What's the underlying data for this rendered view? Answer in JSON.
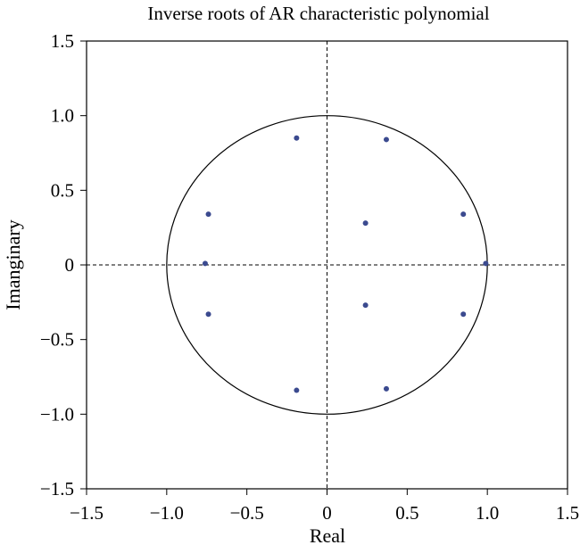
{
  "chart_data": {
    "type": "scatter",
    "title": "Inverse roots of AR characteristic polynomial",
    "xlabel": "Real",
    "ylabel": "Imanginary",
    "xlim": [
      -1.5,
      1.5
    ],
    "ylim": [
      -1.5,
      1.5
    ],
    "xticks": [
      -1.5,
      -1.0,
      -0.5,
      0,
      0.5,
      1.0,
      1.5
    ],
    "yticks": [
      -1.5,
      -1.0,
      -0.5,
      0,
      0.5,
      1.0,
      1.5
    ],
    "xtick_labels": [
      "−1.5",
      "−1.0",
      "−0.5",
      "0",
      "0.5",
      "1.0",
      "1.5"
    ],
    "ytick_labels": [
      "−1.5",
      "−1.0",
      "−0.5",
      "0",
      "0.5",
      "1.0",
      "1.5"
    ],
    "grid": false,
    "unit_circle": true,
    "zero_lines": "dashed",
    "point_color": "#3b4a8f",
    "series": [
      {
        "points": [
          {
            "x": -0.19,
            "y": 0.85
          },
          {
            "x": 0.37,
            "y": 0.84
          },
          {
            "x": -0.74,
            "y": 0.34
          },
          {
            "x": 0.85,
            "y": 0.34
          },
          {
            "x": 0.24,
            "y": 0.28
          },
          {
            "x": -0.76,
            "y": 0.01
          },
          {
            "x": 0.99,
            "y": 0.01
          },
          {
            "x": -0.74,
            "y": -0.33
          },
          {
            "x": 0.24,
            "y": -0.27
          },
          {
            "x": 0.85,
            "y": -0.33
          },
          {
            "x": -0.19,
            "y": -0.84
          },
          {
            "x": 0.37,
            "y": -0.83
          }
        ]
      }
    ]
  }
}
